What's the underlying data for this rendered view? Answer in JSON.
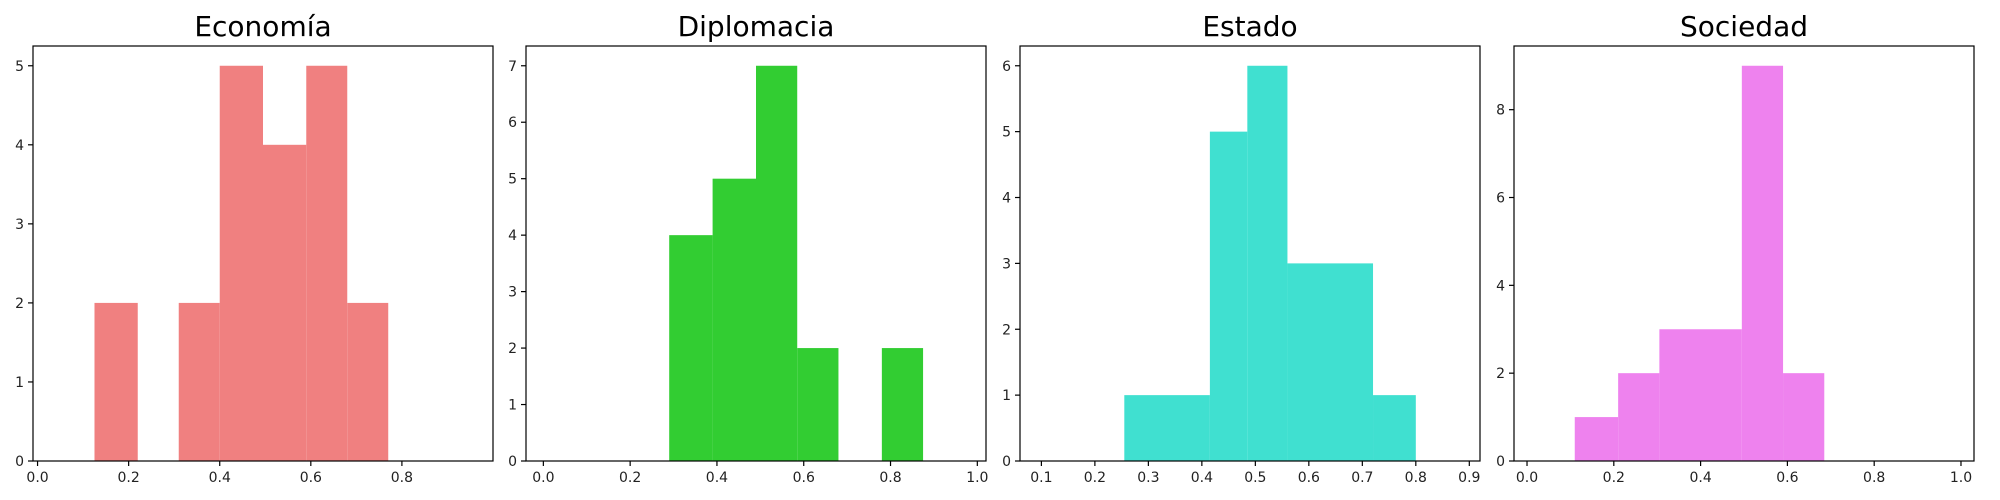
{
  "chart_data": [
    {
      "type": "bar",
      "title": "Economía",
      "color": "#f08080",
      "bins": [
        {
          "x0": 0.125,
          "x1": 0.22,
          "count": 2
        },
        {
          "x0": 0.31,
          "x1": 0.4,
          "count": 2
        },
        {
          "x0": 0.4,
          "x1": 0.495,
          "count": 5
        },
        {
          "x0": 0.495,
          "x1": 0.59,
          "count": 4
        },
        {
          "x0": 0.59,
          "x1": 0.68,
          "count": 5
        },
        {
          "x0": 0.68,
          "x1": 0.77,
          "count": 2
        }
      ],
      "xlim": [
        -0.01,
        1.0
      ],
      "ylim": [
        0,
        5.25
      ],
      "xticks": [
        0.0,
        0.2,
        0.4,
        0.6,
        0.8
      ],
      "xtick_labels": [
        "0.0",
        "0.2",
        "0.4",
        "0.6",
        "0.8"
      ],
      "yticks": [
        0,
        1,
        2,
        3,
        4,
        5
      ],
      "ytick_labels": [
        "0",
        "1",
        "2",
        "3",
        "4",
        "5"
      ]
    },
    {
      "type": "bar",
      "title": "Diplomacia",
      "color": "#32cd32",
      "bins": [
        {
          "x0": 0.29,
          "x1": 0.39,
          "count": 4
        },
        {
          "x0": 0.39,
          "x1": 0.49,
          "count": 5
        },
        {
          "x0": 0.49,
          "x1": 0.585,
          "count": 7
        },
        {
          "x0": 0.585,
          "x1": 0.68,
          "count": 2
        },
        {
          "x0": 0.78,
          "x1": 0.875,
          "count": 2
        }
      ],
      "xlim": [
        -0.04,
        1.02
      ],
      "ylim": [
        0,
        7.35
      ],
      "xticks": [
        0.0,
        0.2,
        0.4,
        0.6,
        0.8,
        1.0
      ],
      "xtick_labels": [
        "0.0",
        "0.2",
        "0.4",
        "0.6",
        "0.8",
        "1.0"
      ],
      "yticks": [
        0,
        1,
        2,
        3,
        4,
        5,
        6,
        7
      ],
      "ytick_labels": [
        "0",
        "1",
        "2",
        "3",
        "4",
        "5",
        "6",
        "7"
      ]
    },
    {
      "type": "bar",
      "title": "Estado",
      "color": "#40e0d0",
      "bins": [
        {
          "x0": 0.255,
          "x1": 0.415,
          "count": 1
        },
        {
          "x0": 0.415,
          "x1": 0.485,
          "count": 5
        },
        {
          "x0": 0.485,
          "x1": 0.56,
          "count": 6
        },
        {
          "x0": 0.56,
          "x1": 0.72,
          "count": 3
        },
        {
          "x0": 0.72,
          "x1": 0.8,
          "count": 1
        }
      ],
      "xlim": [
        0.06,
        0.92
      ],
      "ylim": [
        0,
        6.3
      ],
      "xticks": [
        0.1,
        0.2,
        0.3,
        0.4,
        0.5,
        0.6,
        0.7,
        0.8,
        0.9
      ],
      "xtick_labels": [
        "0.1",
        "0.2",
        "0.3",
        "0.4",
        "0.5",
        "0.6",
        "0.7",
        "0.8",
        "0.9"
      ],
      "yticks": [
        0,
        1,
        2,
        3,
        4,
        5,
        6
      ],
      "ytick_labels": [
        "0",
        "1",
        "2",
        "3",
        "4",
        "5",
        "6"
      ]
    },
    {
      "type": "bar",
      "title": "Sociedad",
      "color": "#ee82ee",
      "bins": [
        {
          "x0": 0.11,
          "x1": 0.21,
          "count": 1
        },
        {
          "x0": 0.21,
          "x1": 0.305,
          "count": 2
        },
        {
          "x0": 0.305,
          "x1": 0.495,
          "count": 3
        },
        {
          "x0": 0.495,
          "x1": 0.59,
          "count": 9
        },
        {
          "x0": 0.59,
          "x1": 0.685,
          "count": 2
        }
      ],
      "xlim": [
        -0.03,
        1.03
      ],
      "ylim": [
        0,
        9.45
      ],
      "xticks": [
        0.0,
        0.2,
        0.4,
        0.6,
        0.8,
        1.0
      ],
      "xtick_labels": [
        "0.0",
        "0.2",
        "0.4",
        "0.6",
        "0.8",
        "1.0"
      ],
      "yticks": [
        0,
        2,
        4,
        6,
        8
      ],
      "ytick_labels": [
        "0",
        "2",
        "4",
        "6",
        "8"
      ]
    }
  ]
}
